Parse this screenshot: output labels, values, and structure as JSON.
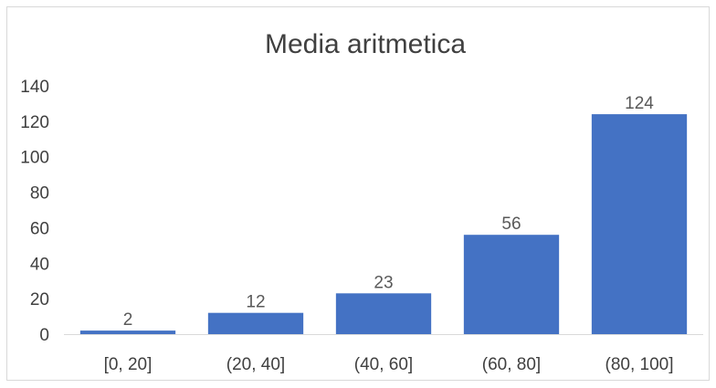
{
  "chart_data": {
    "type": "bar",
    "title": "Media aritmetica",
    "categories": [
      "[0, 20]",
      "(20, 40]",
      "(40, 60]",
      "(60, 80]",
      "(80, 100]"
    ],
    "values": [
      2,
      12,
      23,
      56,
      124
    ],
    "ylim": [
      0,
      140
    ],
    "yticks": [
      0,
      20,
      40,
      60,
      80,
      100,
      120,
      140
    ],
    "xlabel": "",
    "ylabel": "",
    "grid": false,
    "legend": "none",
    "data_labels": true,
    "bar_color": "#4472C4"
  }
}
